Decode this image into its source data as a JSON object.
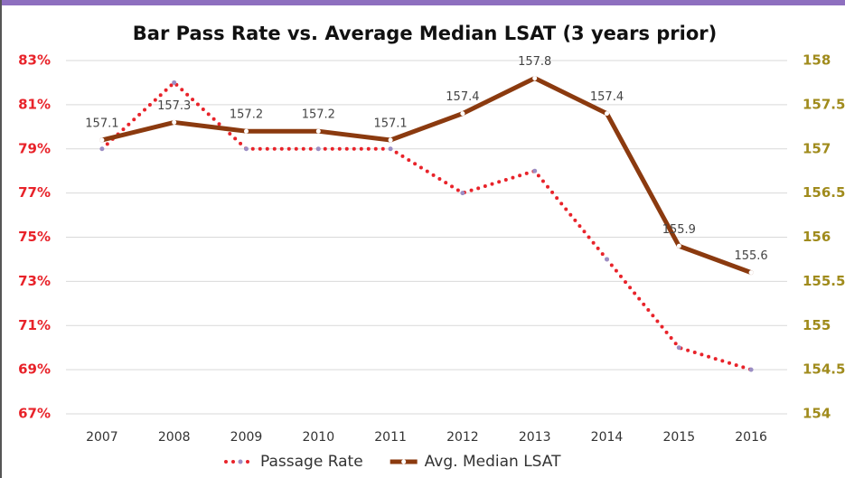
{
  "chart_data": {
    "type": "line",
    "title": "Bar Pass Rate vs. Average Median LSAT (3 years prior)",
    "categories": [
      "2007",
      "2008",
      "2009",
      "2010",
      "2011",
      "2012",
      "2013",
      "2014",
      "2015",
      "2016"
    ],
    "series": [
      {
        "name": "Passage Rate",
        "color": "#e8232a",
        "style": "dotted",
        "axis": "y",
        "values": [
          79,
          82,
          79,
          79,
          79,
          77,
          78,
          74,
          70,
          69
        ]
      },
      {
        "name": "Avg. Median LSAT",
        "color": "#8b3a0f",
        "style": "solid",
        "axis": "y2",
        "values": [
          157.1,
          157.3,
          157.2,
          157.2,
          157.1,
          157.4,
          157.8,
          157.4,
          155.9,
          155.6
        ]
      }
    ],
    "ylim": [
      67,
      83
    ],
    "yticks": [
      {
        "value": 67,
        "label": "67%"
      },
      {
        "value": 69,
        "label": "69%"
      },
      {
        "value": 71,
        "label": "71%"
      },
      {
        "value": 73,
        "label": "73%"
      },
      {
        "value": 75,
        "label": "75%"
      },
      {
        "value": 77,
        "label": "77%"
      },
      {
        "value": 79,
        "label": "79%"
      },
      {
        "value": 81,
        "label": "81%"
      },
      {
        "value": 83,
        "label": "83%"
      }
    ],
    "y2lim": [
      154,
      158
    ],
    "y2ticks": [
      154,
      154.5,
      155,
      155.5,
      156,
      156.5,
      157,
      157.5,
      158
    ],
    "grid": true,
    "legend": "bottom"
  }
}
